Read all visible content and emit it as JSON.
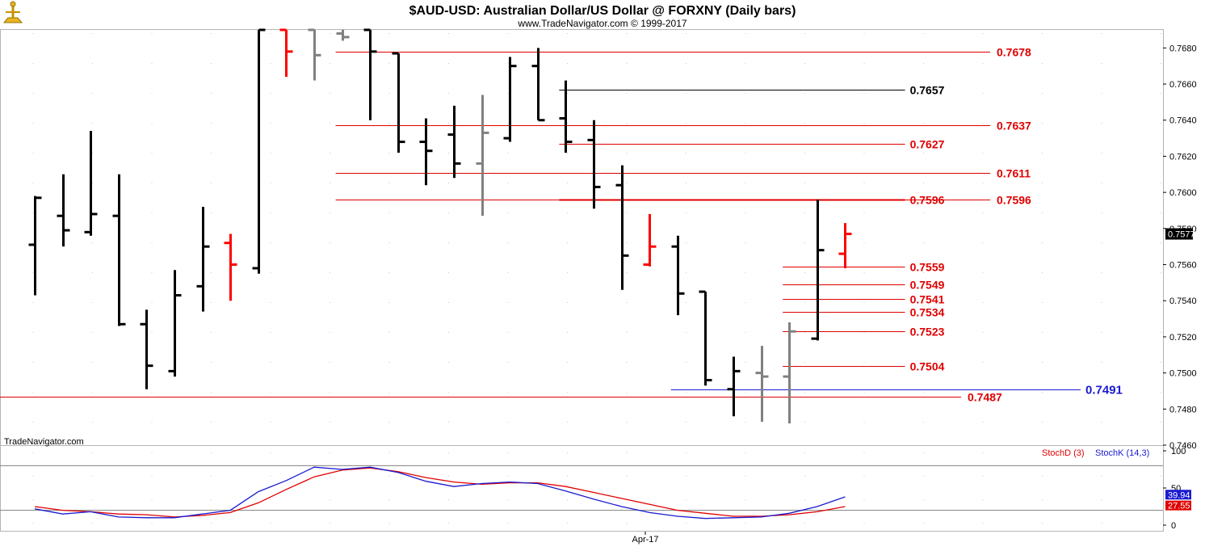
{
  "title": "$AUD-USD:  Australian Dollar/US Dollar @ FORXNY  (Daily bars)",
  "subtitle": "www.TradeNavigator.com © 1999-2017",
  "watermark": "TradeNavigator.com",
  "x_axis_label": "Apr-17",
  "colors": {
    "up": "#000000",
    "down": "#ff0000",
    "neutral": "#808080",
    "level_red": "#e00000",
    "level_blue": "#1a1ad0",
    "stoch_d": "#e00000",
    "stoch_k": "#1a1ad0"
  },
  "chart_data": [
    {
      "type": "ohlc",
      "title": "$AUD-USD:  Australian Dollar/US Dollar @ FORXNY  (Daily bars)",
      "ylim": [
        0.746,
        0.769
      ],
      "y_ticks": [
        "0.7680",
        "0.7660",
        "0.7640",
        "0.7620",
        "0.7600",
        "0.7580",
        "0.7560",
        "0.7540",
        "0.7520",
        "0.7500",
        "0.7480",
        "0.7460"
      ],
      "last_price": "0.7577",
      "bars": [
        {
          "i": 0,
          "open": 0.7571,
          "high": 0.7598,
          "low": 0.7543,
          "close": 0.7597,
          "color": "up"
        },
        {
          "i": 1,
          "open": 0.7587,
          "high": 0.761,
          "low": 0.757,
          "close": 0.7579,
          "color": "up"
        },
        {
          "i": 2,
          "open": 0.7578,
          "high": 0.7634,
          "low": 0.7576,
          "close": 0.7588,
          "color": "up"
        },
        {
          "i": 3,
          "open": 0.7587,
          "high": 0.761,
          "low": 0.7526,
          "close": 0.7527,
          "color": "up"
        },
        {
          "i": 4,
          "open": 0.7527,
          "high": 0.7535,
          "low": 0.7491,
          "close": 0.7504,
          "color": "up"
        },
        {
          "i": 5,
          "open": 0.7501,
          "high": 0.7557,
          "low": 0.7498,
          "close": 0.7543,
          "color": "up"
        },
        {
          "i": 6,
          "open": 0.7548,
          "high": 0.7592,
          "low": 0.7534,
          "close": 0.757,
          "color": "up"
        },
        {
          "i": 7,
          "open": 0.7572,
          "high": 0.7577,
          "low": 0.754,
          "close": 0.756,
          "color": "down"
        },
        {
          "i": 8,
          "open": 0.7558,
          "high": 0.769,
          "low": 0.7555,
          "close": 0.769,
          "color": "up"
        },
        {
          "i": 9,
          "open": 0.769,
          "high": 0.769,
          "low": 0.7664,
          "close": 0.7678,
          "color": "down"
        },
        {
          "i": 10,
          "open": 0.769,
          "high": 0.769,
          "low": 0.7662,
          "close": 0.7676,
          "color": "neutral"
        },
        {
          "i": 11,
          "open": 0.7688,
          "high": 0.769,
          "low": 0.7684,
          "close": 0.7686,
          "color": "neutral"
        },
        {
          "i": 12,
          "open": 0.769,
          "high": 0.769,
          "low": 0.764,
          "close": 0.7678,
          "color": "up"
        },
        {
          "i": 13,
          "open": 0.7677,
          "high": 0.7677,
          "low": 0.7622,
          "close": 0.7628,
          "color": "up"
        },
        {
          "i": 14,
          "open": 0.7628,
          "high": 0.7641,
          "low": 0.7604,
          "close": 0.7623,
          "color": "up"
        },
        {
          "i": 15,
          "open": 0.7632,
          "high": 0.7648,
          "low": 0.7608,
          "close": 0.7616,
          "color": "up"
        },
        {
          "i": 16,
          "open": 0.7616,
          "high": 0.7654,
          "low": 0.7587,
          "close": 0.7633,
          "color": "neutral"
        },
        {
          "i": 17,
          "open": 0.763,
          "high": 0.7675,
          "low": 0.7628,
          "close": 0.767,
          "color": "up"
        },
        {
          "i": 18,
          "open": 0.767,
          "high": 0.768,
          "low": 0.764,
          "close": 0.764,
          "color": "up"
        },
        {
          "i": 19,
          "open": 0.7641,
          "high": 0.7662,
          "low": 0.7622,
          "close": 0.7628,
          "color": "up"
        },
        {
          "i": 20,
          "open": 0.7629,
          "high": 0.764,
          "low": 0.7591,
          "close": 0.7603,
          "color": "up"
        },
        {
          "i": 21,
          "open": 0.7604,
          "high": 0.7615,
          "low": 0.7546,
          "close": 0.7565,
          "color": "up"
        },
        {
          "i": 22,
          "open": 0.756,
          "high": 0.7588,
          "low": 0.7559,
          "close": 0.757,
          "color": "down"
        },
        {
          "i": 23,
          "open": 0.757,
          "high": 0.7576,
          "low": 0.7532,
          "close": 0.7544,
          "color": "up"
        },
        {
          "i": 24,
          "open": 0.7545,
          "high": 0.7545,
          "low": 0.7493,
          "close": 0.7496,
          "color": "up"
        },
        {
          "i": 25,
          "open": 0.7491,
          "high": 0.7509,
          "low": 0.7476,
          "close": 0.7501,
          "color": "up"
        },
        {
          "i": 26,
          "open": 0.75,
          "high": 0.7515,
          "low": 0.7473,
          "close": 0.7498,
          "color": "neutral"
        },
        {
          "i": 27,
          "open": 0.7498,
          "high": 0.7528,
          "low": 0.7472,
          "close": 0.7523,
          "color": "neutral"
        },
        {
          "i": 28,
          "open": 0.7519,
          "high": 0.7596,
          "low": 0.7518,
          "close": 0.7568,
          "color": "up"
        },
        {
          "i": 29,
          "open": 0.7566,
          "high": 0.7583,
          "low": 0.7558,
          "close": 0.7577,
          "color": "down"
        }
      ],
      "levels": [
        {
          "label": "0.7678",
          "value": 0.7678,
          "color": "red",
          "from_bar": 11,
          "label_side": "right"
        },
        {
          "label": "0.7657",
          "value": 0.7657,
          "color": "black",
          "from_bar": 19,
          "to_bar": 31,
          "label_side": "mid"
        },
        {
          "label": "0.7637",
          "value": 0.7637,
          "color": "red",
          "from_bar": 11,
          "label_side": "right"
        },
        {
          "label": "0.7627",
          "value": 0.7627,
          "color": "red",
          "from_bar": 19,
          "to_bar": 31,
          "label_side": "mid"
        },
        {
          "label": "0.7611",
          "value": 0.7611,
          "color": "red",
          "from_bar": 11,
          "label_side": "right"
        },
        {
          "label": "0.7596",
          "value": 0.7596,
          "color": "red",
          "from_bar": 11,
          "label_side": "right"
        },
        {
          "label": "0.7596",
          "value": 0.7596,
          "color": "red",
          "from_bar": 19,
          "to_bar": 31,
          "label_side": "mid",
          "thick": true
        },
        {
          "label": "0.7559",
          "value": 0.7559,
          "color": "red",
          "from_bar": 27,
          "to_bar": 31,
          "label_side": "mid"
        },
        {
          "label": "0.7549",
          "value": 0.7549,
          "color": "red",
          "from_bar": 27,
          "to_bar": 31,
          "label_side": "mid"
        },
        {
          "label": "0.7541",
          "value": 0.7541,
          "color": "red",
          "from_bar": 27,
          "to_bar": 31,
          "label_side": "mid"
        },
        {
          "label": "0.7534",
          "value": 0.7534,
          "color": "red",
          "from_bar": 27,
          "to_bar": 31,
          "label_side": "mid"
        },
        {
          "label": "0.7523",
          "value": 0.7523,
          "color": "red",
          "from_bar": 27,
          "to_bar": 31,
          "label_side": "mid"
        },
        {
          "label": "0.7504",
          "value": 0.7504,
          "color": "red",
          "from_bar": 27,
          "to_bar": 31,
          "label_side": "mid"
        },
        {
          "label": "0.7491",
          "value": 0.7491,
          "color": "blue",
          "from_bar": 23,
          "label_side": "far"
        },
        {
          "label": "0.7487",
          "value": 0.7487,
          "color": "red",
          "from_bar": -1,
          "label_side": "low"
        }
      ]
    },
    {
      "type": "line",
      "title": "Stochastic",
      "ylim": [
        0,
        100
      ],
      "y_ticks": [
        "100",
        "50",
        "0"
      ],
      "reference_lines": [
        80,
        20
      ],
      "series": [
        {
          "name": "StochD (3)",
          "color": "red",
          "values": [
            25,
            20,
            18,
            15,
            14,
            11,
            13,
            17,
            30,
            48,
            65,
            74,
            77,
            72,
            64,
            58,
            55,
            57,
            57,
            52,
            44,
            36,
            28,
            20,
            16,
            12,
            12,
            14,
            18,
            25
          ],
          "last": "27.55"
        },
        {
          "name": "StochK (14,3)",
          "color": "blue",
          "values": [
            22,
            15,
            18,
            11,
            10,
            10,
            15,
            20,
            45,
            60,
            78,
            75,
            78,
            71,
            59,
            52,
            56,
            58,
            56,
            46,
            35,
            25,
            17,
            12,
            9,
            10,
            11,
            16,
            25,
            38
          ],
          "last": "39.94"
        }
      ]
    }
  ]
}
